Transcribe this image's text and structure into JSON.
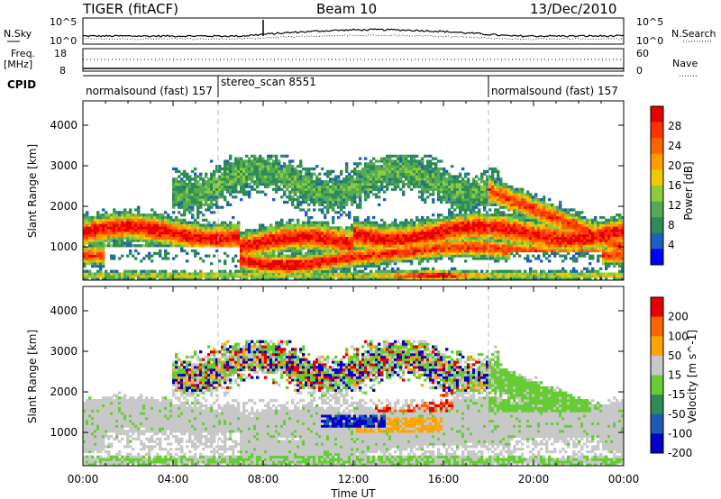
{
  "header": {
    "station": "TIGER (fitACF)",
    "beam": "Beam 10",
    "date": "13/Dec/2010"
  },
  "noise_panel": {
    "left_label": "N.Sky",
    "right_label": "N.Search",
    "left_ticks": [
      "10^5",
      "10^0"
    ],
    "right_ticks": [
      "10^5",
      "10^0"
    ]
  },
  "freq_panel": {
    "left_label_1": "Freq.",
    "left_label_2": "[MHz]",
    "right_label": "Nave",
    "left_ticks": [
      "18",
      "8"
    ],
    "right_ticks": [
      "60",
      "0"
    ]
  },
  "cpid": {
    "label": "CPID",
    "segments": [
      {
        "name": "normalsound (fast) 157",
        "start_hour": 0,
        "end_hour": 6
      },
      {
        "name": "stereo_scan 8551",
        "start_hour": 6,
        "end_hour": 18
      },
      {
        "name": "normalsound (fast) 157",
        "start_hour": 18,
        "end_hour": 24
      }
    ]
  },
  "x_axis": {
    "label": "Time UT",
    "tick_labels": [
      "00:00",
      "04:00",
      "08:00",
      "12:00",
      "16:00",
      "20:00",
      "00:00"
    ]
  },
  "chart_data": [
    {
      "type": "heatmap",
      "quantity": "Power",
      "ylabel": "Slant Range [km]",
      "ylim": [
        180,
        4600
      ],
      "xlim_hours": [
        0,
        24
      ],
      "y_ticks": [
        "1000",
        "2000",
        "3000",
        "4000"
      ],
      "colorbar_label": "Power [dB]",
      "colorbar_ticks": [
        "28",
        "24",
        "20",
        "16",
        "12",
        "8",
        "4"
      ],
      "colorscale": [
        "#0000ff",
        "#1e5fbe",
        "#2e8b57",
        "#55aa55",
        "#8ccc3c",
        "#f0c800",
        "#ff9c00",
        "#ff6400",
        "#ff3200",
        "#e60000"
      ],
      "features": [
        {
          "region": "main scatter band",
          "hours": [
            0,
            24
          ],
          "range_km": [
            900,
            1700
          ],
          "level": "high"
        },
        {
          "region": "half-hop band",
          "hours": [
            7,
            12
          ],
          "range_km": [
            500,
            1300
          ],
          "level": "high"
        },
        {
          "region": "upper echoes",
          "hours": [
            4,
            18
          ],
          "range_km": [
            2000,
            3300
          ],
          "level": "low"
        },
        {
          "region": "near-range",
          "hours": [
            14,
            17
          ],
          "range_km": [
            250,
            500
          ],
          "level": "high"
        }
      ]
    },
    {
      "type": "heatmap",
      "quantity": "Velocity",
      "ylabel": "Slant Range [km]",
      "ylim": [
        180,
        4600
      ],
      "xlim_hours": [
        0,
        24
      ],
      "y_ticks": [
        "1000",
        "2000",
        "3000",
        "4000"
      ],
      "colorbar_label": "Velocity [m s^-1]",
      "colorbar_ticks": [
        "200",
        "100",
        "50",
        "15",
        "-15",
        "-50",
        "-100",
        "-200"
      ],
      "colorscale": [
        "#0000c8",
        "#1e5ab4",
        "#2e8b57",
        "#66cc33",
        "#c8c8c8",
        "#ffa500",
        "#ff6400",
        "#e60000"
      ],
      "features": [
        {
          "region": "ground scatter",
          "hours": [
            0,
            24
          ],
          "range_km": [
            300,
            1800
          ],
          "color": "grey"
        },
        {
          "region": "toward radar patch",
          "hours": [
            10.5,
            13.5
          ],
          "range_km": [
            1150,
            1400
          ],
          "color": "blue"
        },
        {
          "region": "away patch",
          "hours": [
            13,
            16.5
          ],
          "range_km": [
            1500,
            2000
          ],
          "color": "red"
        },
        {
          "region": "orange patch",
          "hours": [
            12,
            16
          ],
          "range_km": [
            1000,
            1300
          ],
          "color": "orange"
        },
        {
          "region": "green echoes",
          "hours": [
            18,
            23
          ],
          "range_km": [
            1500,
            3300
          ],
          "color": "green"
        }
      ]
    }
  ]
}
